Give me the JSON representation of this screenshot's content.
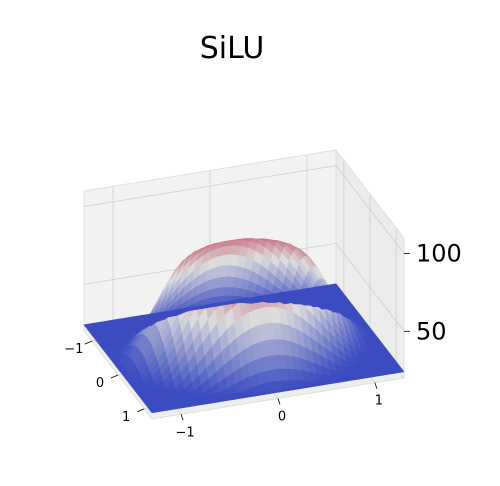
{
  "chart_data": {
    "type": "surface",
    "title": "SiLU",
    "colormap": "coolwarm",
    "colormap_colors": {
      "low": "#3b4cc0",
      "mid": "#dddddd",
      "high": "#b40426"
    },
    "x_axis": {
      "ticks": [
        -1,
        0,
        1
      ],
      "tick_labels": [
        "−1",
        "0",
        "1"
      ],
      "range": [
        -1.3,
        1.3
      ]
    },
    "y_axis": {
      "ticks": [
        1,
        0,
        -1
      ],
      "tick_labels": [
        "1",
        "0",
        "−1"
      ],
      "range": [
        -1.3,
        1.3
      ]
    },
    "z_axis": {
      "ticks": [
        50,
        100
      ],
      "tick_labels": [
        "50",
        "100"
      ],
      "range": [
        20,
        110
      ]
    },
    "surface_values": {
      "x": [
        -1.3,
        -1.0,
        -0.65,
        -0.3,
        0.0,
        0.3,
        0.65,
        1.0,
        1.3
      ],
      "y": [
        -1.3,
        -1.0,
        -0.65,
        -0.3,
        0.0,
        0.3,
        0.65,
        1.0,
        1.3
      ],
      "z_peak": 100,
      "z_center": 90,
      "z_low": 24
    },
    "grid": true,
    "view": "3d-perspective"
  }
}
